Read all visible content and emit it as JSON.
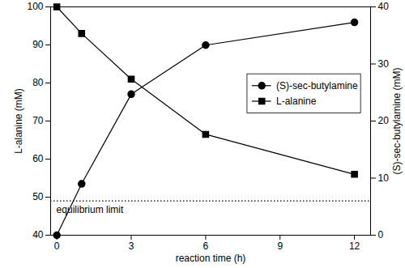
{
  "chart_data": {
    "type": "line",
    "x_label": "reaction time (h)",
    "y_label": "L-alanine (mM)",
    "y2_label": "(S)-sec-butylamine (mM)",
    "x": [
      0,
      1,
      3,
      6,
      12
    ],
    "series": [
      {
        "name": "(S)-sec-butylamine",
        "color": "#000000",
        "marker": "circle",
        "axis": "y2",
        "values": [
          0,
          9,
          24.7,
          33.3,
          37.3
        ]
      },
      {
        "name": "L-alanine",
        "color": "#000000",
        "marker": "square",
        "values": [
          100,
          93,
          81,
          66.5,
          56
        ]
      }
    ],
    "xlim": [
      -0.25,
      12.65
    ],
    "xticks": [
      0,
      3,
      6,
      9,
      12
    ],
    "ylim": [
      40,
      100
    ],
    "yticks": [
      40,
      50,
      60,
      70,
      80,
      90,
      100
    ],
    "y2lim": [
      0,
      40
    ],
    "y2ticks": [
      0,
      10,
      20,
      30,
      40
    ],
    "legend": "right",
    "grid": false,
    "equilibrium_limit": {
      "value": 49,
      "label": "equilibrium limit"
    }
  }
}
